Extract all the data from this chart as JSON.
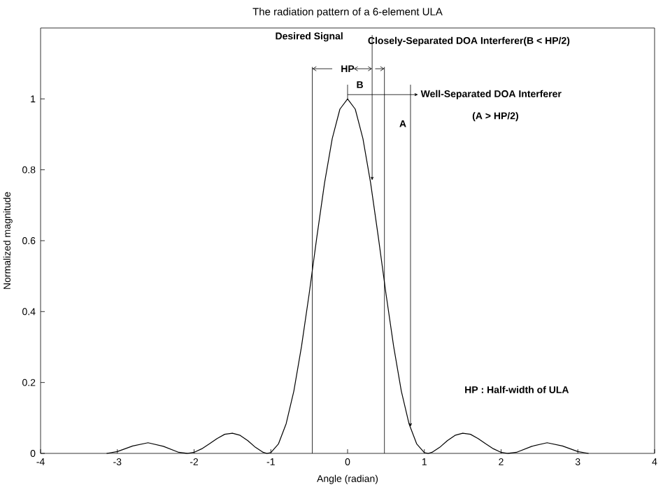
{
  "chart_data": {
    "type": "line",
    "title": "The radiation pattern of a 6-element ULA",
    "xlabel": "Angle (radian)",
    "ylabel": "Normalized magnitude",
    "xlim": [
      -4,
      4
    ],
    "ylim": [
      0,
      1.2
    ],
    "xticks": [
      -4,
      -3,
      -2,
      -1,
      0,
      1,
      2,
      3,
      4
    ],
    "yticks": [
      0,
      0.2,
      0.4,
      0.6,
      0.8,
      1
    ],
    "x": [
      -3.14,
      -3.0,
      -2.8,
      -2.6,
      -2.4,
      -2.2,
      -2.09,
      -2.0,
      -1.9,
      -1.8,
      -1.7,
      -1.6,
      -1.5,
      -1.4,
      -1.3,
      -1.2,
      -1.1,
      -1.05,
      -1.0,
      -0.9,
      -0.8,
      -0.7,
      -0.6,
      -0.5,
      -0.4,
      -0.3,
      -0.2,
      -0.1,
      0,
      0.1,
      0.2,
      0.3,
      0.4,
      0.5,
      0.6,
      0.7,
      0.8,
      0.9,
      1.0,
      1.05,
      1.1,
      1.2,
      1.3,
      1.4,
      1.5,
      1.6,
      1.7,
      1.8,
      1.9,
      2.0,
      2.09,
      2.2,
      2.4,
      2.6,
      2.8,
      3.0,
      3.14
    ],
    "values": [
      0.0,
      0.005,
      0.021,
      0.03,
      0.02,
      0.003,
      0.0,
      0.003,
      0.013,
      0.027,
      0.042,
      0.054,
      0.057,
      0.051,
      0.036,
      0.017,
      0.003,
      0.0,
      0.002,
      0.027,
      0.084,
      0.176,
      0.302,
      0.451,
      0.611,
      0.763,
      0.888,
      0.971,
      1.0,
      0.971,
      0.888,
      0.763,
      0.611,
      0.451,
      0.302,
      0.176,
      0.084,
      0.027,
      0.002,
      0.0,
      0.003,
      0.017,
      0.036,
      0.051,
      0.057,
      0.054,
      0.042,
      0.027,
      0.013,
      0.003,
      0.0,
      0.003,
      0.02,
      0.03,
      0.021,
      0.005,
      0.0
    ],
    "color": "#000000",
    "ref_lines": [
      {
        "axis": "x",
        "value": -0.46,
        "label": null
      },
      {
        "axis": "x",
        "value": 0.48,
        "label": null
      }
    ],
    "annotations": [
      "Desired Signal",
      {
        "text": "Closely-Separated DOA Interferer(B < HP/2)",
        "x": 0.32,
        "y": 0.77
      },
      {
        "text": "Well-Separated DOA Interferer",
        "x": 0.82,
        "y": 0.075
      },
      "(A > HP/2)",
      "HP",
      "B",
      "A",
      "HP : Half-width of ULA"
    ]
  }
}
